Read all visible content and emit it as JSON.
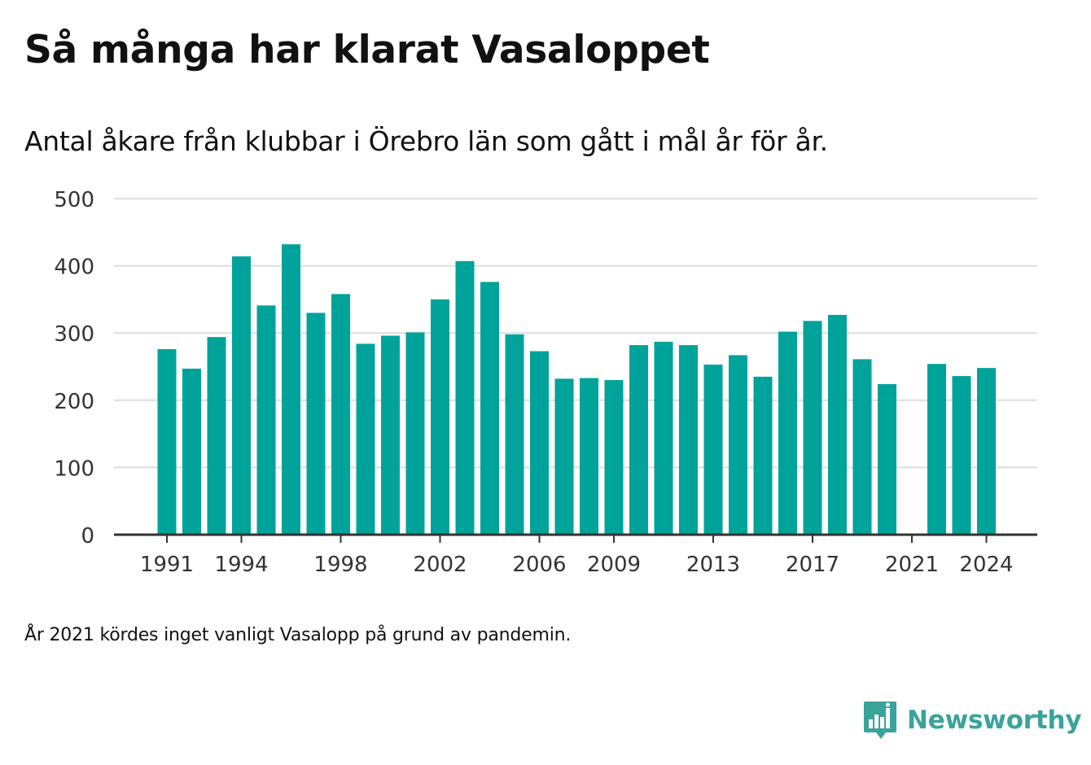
{
  "header": {
    "title": "Så många har klarat Vasaloppet",
    "subtitle": "Antal åkare från klubbar i Örebro län som gått i mål år för år."
  },
  "footnote": "År 2021 kördes inget vanligt Vasalopp på grund av pandemin.",
  "brand": {
    "name": "Newsworthy",
    "icon": "newsworthy-logo-icon"
  },
  "colors": {
    "bar": "#00a39a",
    "grid": "#dddddd",
    "axis": "#333333",
    "brand": "#3aa39a"
  },
  "chart_data": {
    "type": "bar",
    "categories": [
      "1991",
      "1992",
      "1993",
      "1994",
      "1995",
      "1996",
      "1997",
      "1998",
      "1999",
      "2000",
      "2001",
      "2002",
      "2003",
      "2004",
      "2005",
      "2006",
      "2007",
      "2008",
      "2009",
      "2010",
      "2011",
      "2012",
      "2013",
      "2014",
      "2015",
      "2016",
      "2017",
      "2018",
      "2019",
      "2020",
      "2021",
      "2022",
      "2023",
      "2024"
    ],
    "values": [
      276,
      247,
      294,
      414,
      341,
      432,
      330,
      358,
      284,
      296,
      301,
      350,
      407,
      376,
      298,
      273,
      232,
      233,
      230,
      282,
      287,
      282,
      253,
      267,
      235,
      302,
      318,
      327,
      261,
      224,
      null,
      254,
      236,
      248
    ],
    "x_tick_labels": [
      "1991",
      "1994",
      "1998",
      "2002",
      "2006",
      "2009",
      "2013",
      "2017",
      "2021",
      "2024"
    ],
    "y_ticks": [
      0,
      100,
      200,
      300,
      400,
      500
    ],
    "ylim": [
      0,
      500
    ],
    "grid": true,
    "legend": "none"
  }
}
